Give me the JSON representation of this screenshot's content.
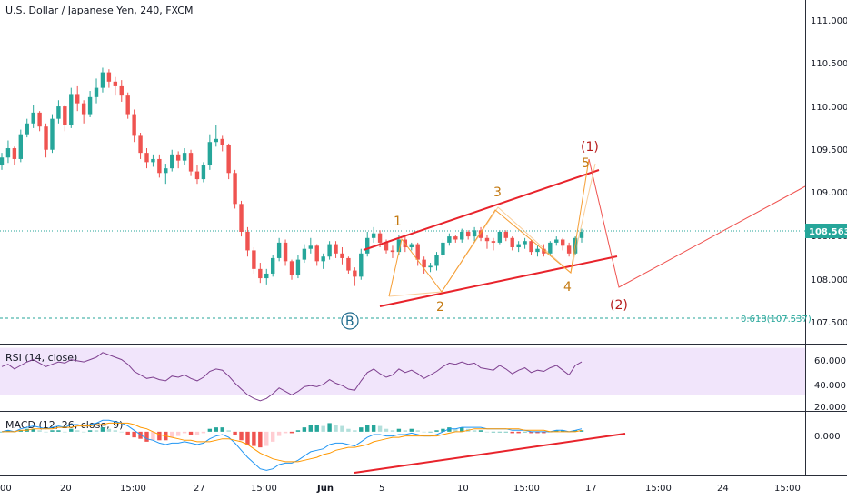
{
  "chart_data": {
    "type": "candlestick",
    "title": "U.S. Dollar / Japanese Yen, 240, FXCM",
    "price_axis": {
      "range": [
        107.35,
        111.32
      ],
      "ticks": [
        "111.000",
        "110.500",
        "110.000",
        "109.500",
        "109.000",
        "108.500",
        "108.000",
        "107.500"
      ],
      "last_price": "108.563",
      "last_value": 108.563
    },
    "time_axis": {
      "ticks": [
        "00",
        "20",
        "15:00",
        "27",
        "15:00",
        "Jun",
        "5",
        "10",
        "15:00",
        "17",
        "15:00",
        "24",
        "15:00"
      ]
    },
    "price_candles": [
      [
        109.42,
        109.58,
        109.36,
        109.52
      ],
      [
        109.52,
        109.74,
        109.45,
        109.64
      ],
      [
        109.64,
        109.66,
        109.42,
        109.5
      ],
      [
        109.5,
        109.88,
        109.46,
        109.82
      ],
      [
        109.82,
        110.02,
        109.78,
        109.96
      ],
      [
        109.96,
        110.2,
        109.9,
        110.1
      ],
      [
        110.1,
        110.12,
        109.86,
        109.92
      ],
      [
        109.92,
        109.96,
        109.52,
        109.62
      ],
      [
        109.62,
        110.08,
        109.58,
        110.02
      ],
      [
        110.02,
        110.26,
        109.96,
        110.18
      ],
      [
        110.18,
        110.2,
        109.86,
        109.94
      ],
      [
        109.94,
        110.42,
        109.9,
        110.34
      ],
      [
        110.34,
        110.44,
        110.12,
        110.22
      ],
      [
        110.22,
        110.26,
        109.96,
        110.08
      ],
      [
        110.08,
        110.38,
        110.04,
        110.3
      ],
      [
        110.3,
        110.54,
        110.22,
        110.42
      ],
      [
        110.42,
        110.68,
        110.36,
        110.62
      ],
      [
        110.62,
        110.66,
        110.42,
        110.5
      ],
      [
        110.5,
        110.56,
        110.32,
        110.44
      ],
      [
        110.44,
        110.52,
        110.24,
        110.32
      ],
      [
        110.32,
        110.36,
        110.02,
        110.08
      ],
      [
        110.08,
        110.14,
        109.72,
        109.8
      ],
      [
        109.8,
        109.84,
        109.5,
        109.58
      ],
      [
        109.58,
        109.64,
        109.38,
        109.46
      ],
      [
        109.46,
        109.56,
        109.4,
        109.5
      ],
      [
        109.5,
        109.56,
        109.26,
        109.32
      ],
      [
        109.32,
        109.44,
        109.18,
        109.38
      ],
      [
        109.38,
        109.62,
        109.34,
        109.56
      ],
      [
        109.56,
        109.6,
        109.38,
        109.48
      ],
      [
        109.48,
        109.64,
        109.42,
        109.58
      ],
      [
        109.58,
        109.62,
        109.28,
        109.34
      ],
      [
        109.34,
        109.42,
        109.18,
        109.24
      ],
      [
        109.24,
        109.46,
        109.2,
        109.42
      ],
      [
        109.42,
        109.82,
        109.36,
        109.72
      ],
      [
        109.72,
        109.94,
        109.66,
        109.76
      ],
      [
        109.76,
        109.8,
        109.6,
        109.68
      ],
      [
        109.68,
        109.7,
        109.24,
        109.32
      ],
      [
        109.32,
        109.36,
        108.86,
        108.92
      ],
      [
        108.92,
        108.96,
        108.5,
        108.56
      ],
      [
        108.56,
        108.62,
        108.24,
        108.32
      ],
      [
        108.32,
        108.36,
        108.02,
        108.08
      ],
      [
        108.08,
        108.16,
        107.9,
        107.96
      ],
      [
        107.96,
        108.08,
        107.88,
        108.02
      ],
      [
        108.02,
        108.26,
        107.98,
        108.22
      ],
      [
        108.22,
        108.48,
        108.18,
        108.42
      ],
      [
        108.42,
        108.46,
        108.12,
        108.18
      ],
      [
        108.18,
        108.2,
        107.94,
        108.0
      ],
      [
        108.0,
        108.26,
        107.96,
        108.2
      ],
      [
        108.2,
        108.4,
        108.16,
        108.34
      ],
      [
        108.34,
        108.48,
        108.28,
        108.38
      ],
      [
        108.38,
        108.4,
        108.12,
        108.18
      ],
      [
        108.18,
        108.28,
        108.08,
        108.24
      ],
      [
        108.24,
        108.44,
        108.2,
        108.4
      ],
      [
        108.4,
        108.44,
        108.22,
        108.28
      ],
      [
        108.28,
        108.36,
        108.14,
        108.22
      ],
      [
        108.22,
        108.24,
        108.02,
        108.06
      ],
      [
        108.06,
        108.1,
        107.86,
        107.98
      ],
      [
        107.98,
        108.34,
        107.94,
        108.28
      ],
      [
        108.28,
        108.56,
        108.24,
        108.48
      ],
      [
        108.48,
        108.62,
        108.42,
        108.54
      ],
      [
        108.54,
        108.58,
        108.36,
        108.42
      ],
      [
        108.42,
        108.46,
        108.28,
        108.32
      ],
      [
        108.32,
        108.38,
        108.22,
        108.3
      ],
      [
        108.3,
        108.52,
        108.26,
        108.46
      ],
      [
        108.46,
        108.5,
        108.3,
        108.36
      ],
      [
        108.36,
        108.42,
        108.32,
        108.4
      ],
      [
        108.4,
        108.42,
        108.12,
        108.2
      ],
      [
        108.2,
        108.24,
        108.02,
        108.1
      ],
      [
        108.1,
        108.16,
        108.04,
        108.12
      ],
      [
        108.12,
        108.3,
        108.06,
        108.26
      ],
      [
        108.26,
        108.46,
        108.22,
        108.42
      ],
      [
        108.42,
        108.54,
        108.38,
        108.5
      ],
      [
        108.5,
        108.52,
        108.42,
        108.46
      ],
      [
        108.46,
        108.6,
        108.42,
        108.56
      ],
      [
        108.56,
        108.58,
        108.46,
        108.5
      ],
      [
        108.5,
        108.62,
        108.44,
        108.58
      ],
      [
        108.58,
        108.62,
        108.44,
        108.48
      ],
      [
        108.48,
        108.52,
        108.34,
        108.44
      ],
      [
        108.44,
        108.48,
        108.32,
        108.42
      ],
      [
        108.42,
        108.58,
        108.4,
        108.56
      ],
      [
        108.56,
        108.58,
        108.44,
        108.48
      ],
      [
        108.48,
        108.5,
        108.32,
        108.36
      ],
      [
        108.36,
        108.44,
        108.3,
        108.4
      ],
      [
        108.4,
        108.48,
        108.34,
        108.44
      ],
      [
        108.44,
        108.46,
        108.26,
        108.3
      ],
      [
        108.3,
        108.38,
        108.24,
        108.34
      ],
      [
        108.34,
        108.4,
        108.24,
        108.28
      ],
      [
        108.28,
        108.44,
        108.26,
        108.42
      ],
      [
        108.42,
        108.5,
        108.38,
        108.46
      ],
      [
        108.46,
        108.48,
        108.32,
        108.38
      ],
      [
        108.38,
        108.42,
        108.24,
        108.28
      ],
      [
        108.28,
        108.5,
        108.26,
        108.48
      ],
      [
        108.48,
        108.6,
        108.42,
        108.56
      ]
    ],
    "indicators": {
      "rsi": {
        "label": "RSI (14, close)",
        "ticks": [
          "60.000",
          "40.000",
          "20.000"
        ],
        "range": [
          18,
          72
        ],
        "band": [
          30,
          70
        ],
        "values": [
          54,
          56,
          52,
          55,
          58,
          60,
          57,
          54,
          56,
          58,
          57,
          60,
          59,
          58,
          60,
          62,
          66,
          64,
          62,
          60,
          56,
          50,
          47,
          44,
          45,
          43,
          42,
          46,
          45,
          47,
          44,
          42,
          45,
          50,
          52,
          51,
          46,
          40,
          35,
          30,
          27,
          25,
          27,
          31,
          36,
          33,
          30,
          33,
          37,
          38,
          37,
          39,
          43,
          40,
          38,
          35,
          34,
          42,
          49,
          52,
          48,
          45,
          47,
          52,
          49,
          51,
          48,
          44,
          47,
          50,
          54,
          57,
          56,
          58,
          56,
          57,
          53,
          52,
          51,
          55,
          52,
          48,
          51,
          53,
          49,
          51,
          50,
          53,
          55,
          51,
          47,
          55,
          58
        ]
      },
      "macd": {
        "label": "MACD (12, 26, close, 9)",
        "ticks": [
          "0.000"
        ],
        "range": [
          -0.3,
          0.12
        ],
        "macd": [
          0.0,
          0.01,
          0.0,
          0.02,
          0.03,
          0.04,
          0.03,
          0.02,
          0.03,
          0.04,
          0.03,
          0.05,
          0.05,
          0.04,
          0.05,
          0.06,
          0.08,
          0.08,
          0.07,
          0.06,
          0.04,
          0.01,
          -0.02,
          -0.05,
          -0.06,
          -0.08,
          -0.09,
          -0.08,
          -0.08,
          -0.07,
          -0.08,
          -0.09,
          -0.08,
          -0.05,
          -0.03,
          -0.02,
          -0.04,
          -0.08,
          -0.13,
          -0.18,
          -0.22,
          -0.26,
          -0.27,
          -0.26,
          -0.23,
          -0.22,
          -0.22,
          -0.2,
          -0.17,
          -0.14,
          -0.13,
          -0.12,
          -0.09,
          -0.08,
          -0.08,
          -0.09,
          -0.1,
          -0.07,
          -0.04,
          -0.02,
          -0.02,
          -0.03,
          -0.03,
          -0.02,
          -0.02,
          -0.01,
          -0.02,
          -0.03,
          -0.03,
          -0.02,
          0.0,
          0.02,
          0.02,
          0.03,
          0.03,
          0.03,
          0.03,
          0.02,
          0.02,
          0.02,
          0.02,
          0.01,
          0.01,
          0.01,
          0.0,
          0.0,
          0.0,
          0.0,
          0.01,
          0.01,
          0.0,
          0.01,
          0.02
        ],
        "signal": [
          0.0,
          0.0,
          0.0,
          0.01,
          0.01,
          0.02,
          0.02,
          0.02,
          0.02,
          0.03,
          0.03,
          0.03,
          0.04,
          0.04,
          0.04,
          0.05,
          0.05,
          0.06,
          0.06,
          0.06,
          0.06,
          0.05,
          0.03,
          0.02,
          0.0,
          -0.02,
          -0.03,
          -0.04,
          -0.05,
          -0.06,
          -0.06,
          -0.07,
          -0.07,
          -0.07,
          -0.06,
          -0.05,
          -0.05,
          -0.06,
          -0.07,
          -0.09,
          -0.12,
          -0.15,
          -0.17,
          -0.19,
          -0.2,
          -0.21,
          -0.21,
          -0.21,
          -0.2,
          -0.19,
          -0.18,
          -0.16,
          -0.15,
          -0.13,
          -0.12,
          -0.11,
          -0.11,
          -0.1,
          -0.09,
          -0.07,
          -0.06,
          -0.05,
          -0.04,
          -0.04,
          -0.03,
          -0.03,
          -0.03,
          -0.03,
          -0.03,
          -0.03,
          -0.02,
          -0.01,
          0.0,
          0.0,
          0.01,
          0.02,
          0.02,
          0.02,
          0.02,
          0.02,
          0.02,
          0.02,
          0.02,
          0.01,
          0.01,
          0.01,
          0.01,
          0.0,
          0.0,
          0.0,
          0.0,
          0.0,
          0.01
        ]
      }
    },
    "fib": {
      "label": "0.618(107.537)",
      "value": 107.537
    },
    "wave_labels": [
      "1",
      "2",
      "3",
      "4",
      "5",
      "(1)",
      "(2)",
      "B"
    ],
    "colors": {
      "up": "#26a69a",
      "down": "#ef5350",
      "trend": "#e8232b",
      "wave_orange": "#f59d33",
      "wave_red": "#d32f2f",
      "label_orange": "#c47a12",
      "rsi": "#7e3f8f",
      "rsi_band": "#f1e5fb",
      "macd_line": "#2196f3",
      "signal_line": "#ff9800",
      "price_line": "#26a69a",
      "axis_tag": "#26a69a",
      "b_circle": "#1e6a8c"
    }
  }
}
